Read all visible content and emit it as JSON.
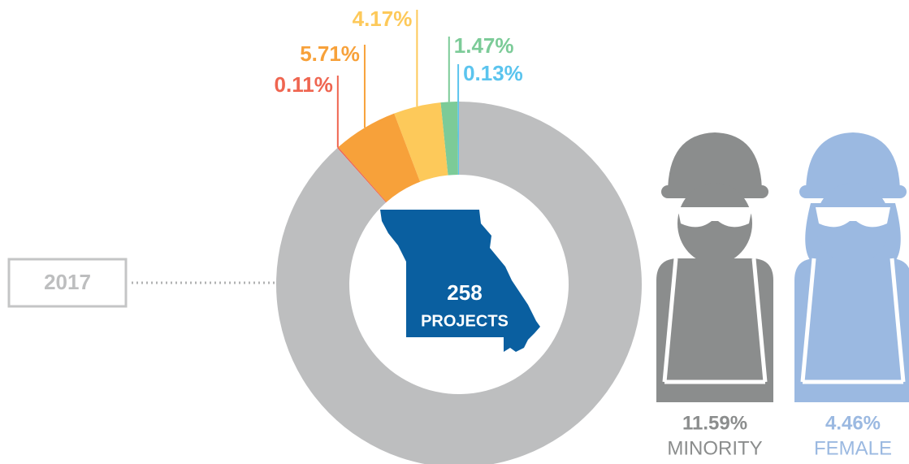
{
  "chart_data": {
    "type": "donut",
    "year": "2017",
    "center_value": "258",
    "center_label": "PROJECTS",
    "remainder_color": "#bdbebf",
    "series": [
      {
        "color": "#5bc4ee",
        "values": [
          0.13
        ],
        "value_labels": [
          "0.13%"
        ]
      },
      {
        "color": "#7ccb98",
        "values": [
          1.47
        ],
        "value_labels": [
          "1.47%"
        ]
      },
      {
        "color": "#fdc95a",
        "values": [
          4.17
        ],
        "value_labels": [
          "4.17%"
        ]
      },
      {
        "color": "#f7a13a",
        "values": [
          5.71
        ],
        "value_labels": [
          "5.71%"
        ]
      },
      {
        "color": "#ef6550",
        "values": [
          0.11
        ],
        "value_labels": [
          "0.11%"
        ]
      }
    ],
    "workforce": [
      {
        "name": "MINORITY",
        "value": 11.59,
        "value_label": "11.59%",
        "color": "#8b8d8d"
      },
      {
        "name": "FEMALE",
        "value": 4.46,
        "value_label": "4.46%",
        "color": "#9bb9e1"
      }
    ]
  }
}
